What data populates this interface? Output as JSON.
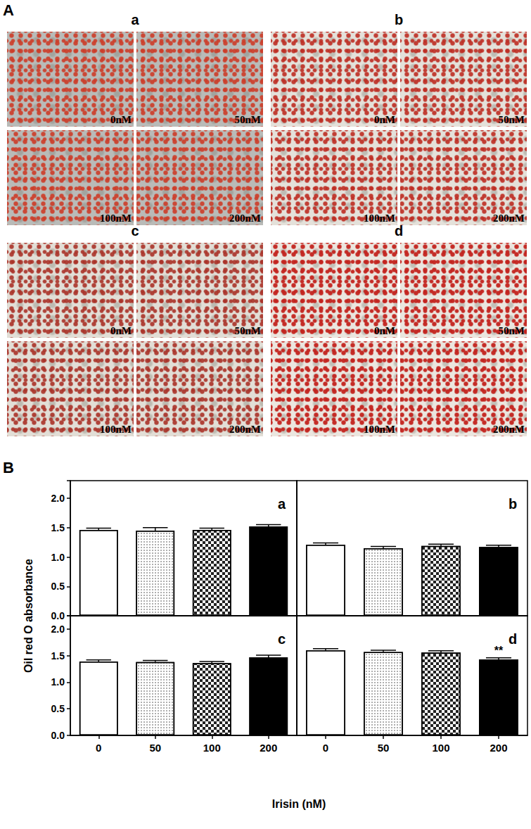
{
  "figure_label_A": "A",
  "micrographs": [
    {
      "label": "a",
      "images": [
        "0nM",
        "50nM",
        "100nM",
        "200nM"
      ]
    },
    {
      "label": "b",
      "images": [
        "0nM",
        "50nM",
        "100nM",
        "200nM"
      ]
    },
    {
      "label": "c",
      "images": [
        "0nM",
        "50nM",
        "100nM",
        "200nM"
      ]
    },
    {
      "label": "d",
      "images": [
        "0nM",
        "50nM",
        "100nM",
        "200nM"
      ]
    }
  ],
  "figure_label_B": "B",
  "shared_ylabel": "Oil red O absorbance",
  "shared_xlabel": "Irisin (nM)",
  "chart_data": [
    {
      "type": "bar",
      "title": "a",
      "categories": [
        "0",
        "50",
        "100",
        "200"
      ],
      "values": [
        1.46,
        1.45,
        1.46,
        1.52
      ],
      "errors": [
        0.03,
        0.05,
        0.03,
        0.03
      ],
      "colors": [
        "#ffffff",
        "#ffffff",
        "#ffffff",
        "#000000"
      ],
      "ylim": [
        0,
        2.3
      ],
      "yticks": [
        {
          "value": 0,
          "label": "0.0"
        },
        0.5,
        {
          "value": 1,
          "label": "1.0"
        },
        1.5,
        {
          "value": 2,
          "label": "2.0"
        }
      ],
      "grid": false,
      "tick_labels": "y"
    },
    {
      "type": "bar",
      "title": "b",
      "categories": [
        "0",
        "50",
        "100",
        "200"
      ],
      "values": [
        1.21,
        1.15,
        1.19,
        1.17
      ],
      "errors": [
        0.03,
        0.03,
        0.03,
        0.03
      ],
      "colors": [
        "#ffffff",
        "#ffffff",
        "#ffffff",
        "#000000"
      ],
      "ylim": [
        0,
        2.3
      ],
      "yticks": [
        {
          "value": 0,
          "label": "0.0"
        },
        0.5,
        {
          "value": 1,
          "label": "1.0"
        },
        1.5,
        {
          "value": 2,
          "label": "2.0"
        }
      ],
      "grid": false,
      "tick_labels": false
    },
    {
      "type": "bar",
      "title": "c",
      "categories": [
        "0",
        "50",
        "100",
        "200"
      ],
      "values": [
        1.39,
        1.38,
        1.36,
        1.47
      ],
      "errors": [
        0.03,
        0.03,
        0.03,
        0.04
      ],
      "colors": [
        "#ffffff",
        "#ffffff",
        "#ffffff",
        "#000000"
      ],
      "ylim": [
        0,
        2.25
      ],
      "yticks": [
        {
          "value": 0,
          "label": "0.0"
        },
        0.5,
        {
          "value": 1,
          "label": "1.0"
        },
        1.5,
        {
          "value": 2,
          "label": "2.0"
        }
      ],
      "grid": false,
      "tick_labels": true
    },
    {
      "type": "bar",
      "title": "d",
      "categories": [
        "0",
        "50",
        "100",
        "200"
      ],
      "values": [
        1.6,
        1.57,
        1.56,
        1.43
      ],
      "errors": [
        0.03,
        0.03,
        0.03,
        0.03
      ],
      "colors": [
        "#ffffff",
        "#ffffff",
        "#ffffff",
        "#000000"
      ],
      "annotations": [
        {
          "category": "200",
          "text": "**"
        }
      ],
      "ylim": [
        0,
        2.25
      ],
      "yticks": [
        {
          "value": 0,
          "label": "0.0"
        },
        0.5,
        {
          "value": 1,
          "label": "1.0"
        },
        1.5,
        {
          "value": 2,
          "label": "2.0"
        }
      ],
      "grid": false,
      "tick_labels": "x"
    }
  ]
}
